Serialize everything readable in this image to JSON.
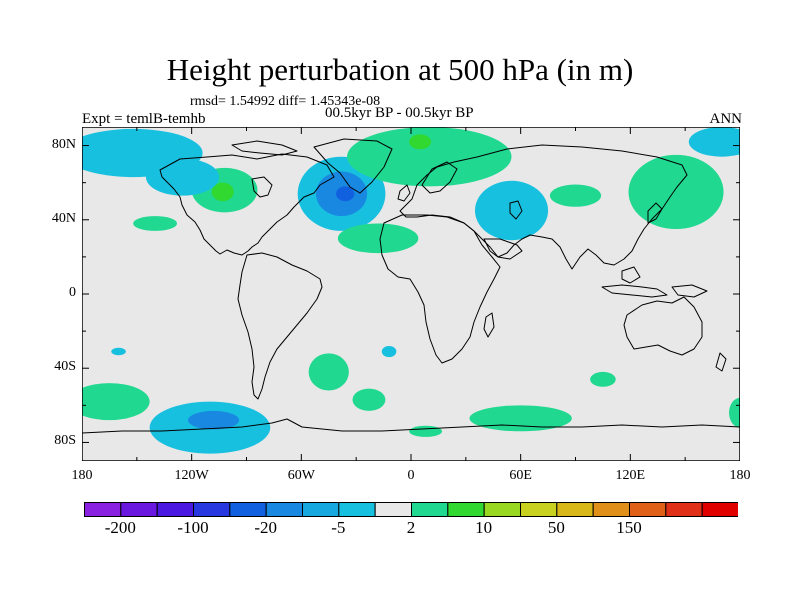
{
  "header": {
    "title": "Height perturbation at 500 hPa (in m)",
    "stats": "rmsd= 1.54992 diff= 1.45343e-08",
    "period": "00.5kyr BP - 00.5kyr BP",
    "experiment": "Expt = temlB-temhb",
    "season": "ANN"
  },
  "axes": {
    "lat_ticks": [
      {
        "value": 80,
        "label": "80N"
      },
      {
        "value": 40,
        "label": "40N"
      },
      {
        "value": 0,
        "label": "0"
      },
      {
        "value": -40,
        "label": "40S"
      },
      {
        "value": -80,
        "label": "80S"
      }
    ],
    "lon_ticks": [
      {
        "value": -180,
        "label": "180"
      },
      {
        "value": -120,
        "label": "120W"
      },
      {
        "value": -60,
        "label": "60W"
      },
      {
        "value": 0,
        "label": "0"
      },
      {
        "value": 60,
        "label": "60E"
      },
      {
        "value": 120,
        "label": "120E"
      },
      {
        "value": 180,
        "label": "180"
      }
    ],
    "lon_range": [
      -180,
      180
    ],
    "lat_range": [
      -90,
      90
    ]
  },
  "colorbar": {
    "colors": [
      "#8a20e0",
      "#6a18e0",
      "#4a18e0",
      "#2838e0",
      "#1060e0",
      "#1888e0",
      "#18a8e0",
      "#18c0e0",
      "#e8e8e8",
      "#20d890",
      "#30d830",
      "#98d820",
      "#c8d020",
      "#d8b818",
      "#e09018",
      "#e06018",
      "#e03018",
      "#e00000"
    ],
    "labels": [
      {
        "boundary": 1,
        "text": "-200"
      },
      {
        "boundary": 3,
        "text": "-100"
      },
      {
        "boundary": 5,
        "text": "-20"
      },
      {
        "boundary": 7,
        "text": "-5"
      },
      {
        "boundary": 9,
        "text": "2"
      },
      {
        "boundary": 11,
        "text": "10"
      },
      {
        "boundary": 13,
        "text": "50"
      },
      {
        "boundary": 15,
        "text": "150"
      }
    ]
  },
  "map_regions": [
    {
      "name": "north-pacific-high",
      "color": "#18c0e0",
      "lon": -152,
      "lat": 76,
      "rlon": 38,
      "rlat": 13
    },
    {
      "name": "north-atlantic-low",
      "color": "#18c0e0",
      "lon": -38,
      "lat": 54,
      "rlon": 24,
      "rlat": 20
    },
    {
      "name": "north-atlantic-low-core",
      "color": "#1888e0",
      "lon": -38,
      "lat": 54,
      "rlon": 14,
      "rlat": 12
    },
    {
      "name": "north-atlantic-low-center",
      "color": "#1060e0",
      "lon": -36,
      "lat": 54,
      "rlon": 5,
      "rlat": 4
    },
    {
      "name": "arctic-europe-high",
      "color": "#20d890",
      "lon": 10,
      "lat": 74,
      "rlon": 45,
      "rlat": 16
    },
    {
      "name": "arctic-europe-high-core",
      "color": "#30d830",
      "lon": 5,
      "lat": 82,
      "rlon": 6,
      "rlat": 4
    },
    {
      "name": "north-america-high",
      "color": "#20d890",
      "lon": -102,
      "lat": 56,
      "rlon": 18,
      "rlat": 12
    },
    {
      "name": "north-america-high-core",
      "color": "#30d830",
      "lon": -103,
      "lat": 55,
      "rlon": 6,
      "rlat": 5
    },
    {
      "name": "canada-low",
      "color": "#18c0e0",
      "lon": -125,
      "lat": 63,
      "rlon": 20,
      "rlat": 10
    },
    {
      "name": "central-asia-low",
      "color": "#18c0e0",
      "lon": 55,
      "lat": 45,
      "rlon": 20,
      "rlat": 16
    },
    {
      "name": "subtropical-atlantic-high",
      "color": "#20d890",
      "lon": -18,
      "lat": 30,
      "rlon": 22,
      "rlat": 8
    },
    {
      "name": "subtropical-pacific-high",
      "color": "#20d890",
      "lon": -140,
      "lat": 38,
      "rlon": 12,
      "rlat": 4
    },
    {
      "name": "siberia-high",
      "color": "#20d890",
      "lon": 90,
      "lat": 53,
      "rlon": 14,
      "rlat": 6
    },
    {
      "name": "east-asia-high",
      "color": "#20d890",
      "lon": 145,
      "lat": 55,
      "rlon": 26,
      "rlat": 20
    },
    {
      "name": "south-pacific-west-high",
      "color": "#20d890",
      "lon": -165,
      "lat": -58,
      "rlon": 22,
      "rlat": 10
    },
    {
      "name": "south-pacific-low",
      "color": "#18c0e0",
      "lon": -110,
      "lat": -72,
      "rlon": 33,
      "rlat": 14
    },
    {
      "name": "south-pacific-low-core",
      "color": "#1888e0",
      "lon": -108,
      "lat": -68,
      "rlon": 14,
      "rlat": 5
    },
    {
      "name": "south-atlantic-high",
      "color": "#20d890",
      "lon": -45,
      "lat": -42,
      "rlon": 11,
      "rlat": 10
    },
    {
      "name": "south-atlantic-high-east",
      "color": "#20d890",
      "lon": -23,
      "lat": -57,
      "rlon": 9,
      "rlat": 6
    },
    {
      "name": "south-atlantic-low-small",
      "color": "#18c0e0",
      "lon": -12,
      "lat": -31,
      "rlon": 4,
      "rlat": 3
    },
    {
      "name": "southern-ocean-high",
      "color": "#20d890",
      "lon": 60,
      "lat": -67,
      "rlon": 28,
      "rlat": 7
    },
    {
      "name": "southern-ocean-high-west",
      "color": "#20d890",
      "lon": 8,
      "lat": -74,
      "rlon": 9,
      "rlat": 3
    },
    {
      "name": "indian-ocean-high",
      "color": "#20d890",
      "lon": 105,
      "lat": -46,
      "rlon": 7,
      "rlat": 4
    },
    {
      "name": "south-pacific-east-high",
      "color": "#20d890",
      "lon": 180,
      "lat": -64,
      "rlon": 6,
      "rlat": 8
    },
    {
      "name": "south-pacific-low-east",
      "color": "#18c0e0",
      "lon": -160,
      "lat": -31,
      "rlon": 4,
      "rlat": 2
    },
    {
      "name": "north-pacific-east-low",
      "color": "#18c0e0",
      "lon": 170,
      "lat": 82,
      "rlon": 18,
      "rlat": 8
    }
  ]
}
